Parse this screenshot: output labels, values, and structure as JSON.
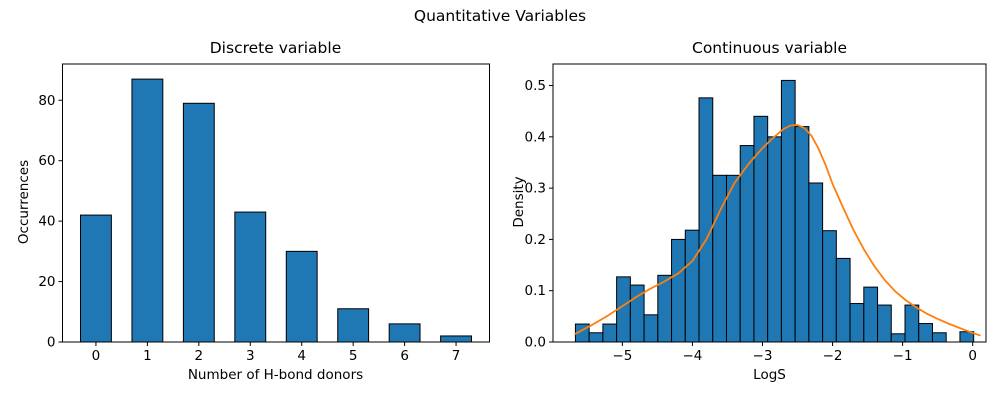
{
  "figure": {
    "suptitle": "Quantitative Variables",
    "background": "#ffffff"
  },
  "colors": {
    "bar_fill": "#1f77b4",
    "bar_edge": "#000000",
    "kde_line": "#ff7f0e",
    "axis": "#000000",
    "text": "#000000"
  },
  "chart_data": [
    {
      "type": "bar",
      "title": "Discrete variable",
      "xlabel": "Number of H-bond donors",
      "ylabel": "Occurrences",
      "categories": [
        "0",
        "1",
        "2",
        "3",
        "4",
        "5",
        "6",
        "7"
      ],
      "values": [
        42,
        87,
        79,
        43,
        30,
        11,
        6,
        2
      ],
      "bar_color": "#1f77b4",
      "bar_edge_color": "#000000",
      "bar_width": 0.6,
      "xlim": [
        -0.65,
        7.65
      ],
      "ylim": [
        0,
        92
      ],
      "yticks": {
        "values": [
          0,
          20,
          40,
          60,
          80
        ],
        "labels": [
          "0",
          "20",
          "40",
          "60",
          "80"
        ]
      },
      "grid": false,
      "legend": "none"
    },
    {
      "type": "histogram",
      "title": "Continuous variable",
      "xlabel": "LogS",
      "ylabel": "Density",
      "bin_start": -5.67,
      "bin_width": 0.196,
      "bin_heights": [
        0.035,
        0.018,
        0.035,
        0.127,
        0.111,
        0.053,
        0.13,
        0.2,
        0.218,
        0.476,
        0.325,
        0.325,
        0.383,
        0.44,
        0.4,
        0.51,
        0.42,
        0.31,
        0.217,
        0.163,
        0.075,
        0.107,
        0.072,
        0.016,
        0.072,
        0.036,
        0.018,
        0,
        0.02
      ],
      "bar_color": "#1f77b4",
      "bar_edge_color": "#000000",
      "kde_color": "#ff7f0e",
      "kde": {
        "x": [
          -5.67,
          -5.45,
          -5.2,
          -5.0,
          -4.8,
          -4.6,
          -4.4,
          -4.2,
          -4.0,
          -3.8,
          -3.6,
          -3.4,
          -3.2,
          -3.0,
          -2.85,
          -2.7,
          -2.6,
          -2.5,
          -2.4,
          -2.3,
          -2.2,
          -2.1,
          -2.0,
          -1.85,
          -1.7,
          -1.55,
          -1.4,
          -1.25,
          -1.1,
          -0.95,
          -0.8,
          -0.65,
          -0.5,
          -0.35,
          -0.2,
          -0.05,
          0.1
        ],
        "y": [
          0.016,
          0.032,
          0.052,
          0.07,
          0.088,
          0.104,
          0.118,
          0.134,
          0.158,
          0.2,
          0.258,
          0.31,
          0.347,
          0.378,
          0.398,
          0.415,
          0.422,
          0.423,
          0.417,
          0.402,
          0.377,
          0.345,
          0.308,
          0.262,
          0.218,
          0.18,
          0.147,
          0.12,
          0.098,
          0.081,
          0.067,
          0.055,
          0.045,
          0.036,
          0.028,
          0.02,
          0.013
        ]
      },
      "xlim": [
        -5.99,
        0.19
      ],
      "ylim": [
        0,
        0.542
      ],
      "xticks": {
        "values": [
          -5,
          -4,
          -3,
          -2,
          -1,
          0
        ],
        "labels": [
          "−5",
          "−4",
          "−3",
          "−2",
          "−1",
          "0"
        ]
      },
      "yticks": {
        "values": [
          0,
          0.1,
          0.2,
          0.3,
          0.4,
          0.5
        ],
        "labels": [
          "0.0",
          "0.1",
          "0.2",
          "0.3",
          "0.4",
          "0.5"
        ]
      },
      "grid": false,
      "legend": "none"
    }
  ]
}
